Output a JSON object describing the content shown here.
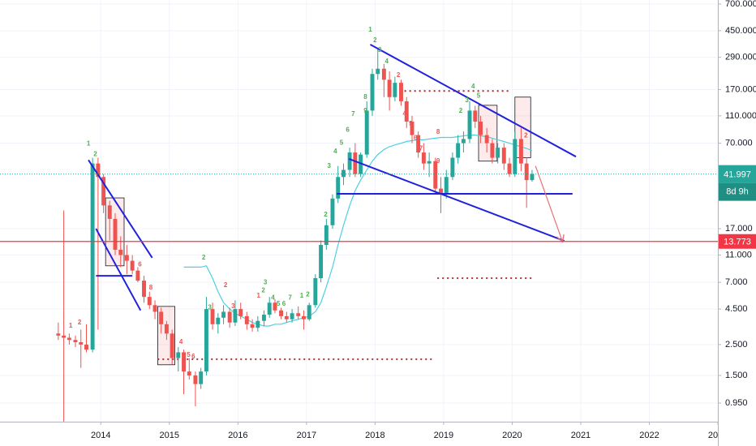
{
  "chart_data": {
    "type": "candlestick",
    "log_scale": true,
    "grid": true,
    "xlim": [
      2012.53,
      2023.0
    ],
    "ylim": [
      0.698,
      748
    ],
    "xticks": [
      2014,
      2015,
      2016,
      2017,
      2018,
      2019,
      2020,
      2021,
      2022,
      {
        "value": 2023,
        "label": "20"
      }
    ],
    "yticks": [
      {
        "value": 700,
        "label": "700.000"
      },
      {
        "value": 450,
        "label": "450.000"
      },
      {
        "value": 290,
        "label": "290.000"
      },
      {
        "value": 170,
        "label": "170.000"
      },
      {
        "value": 110,
        "label": "110.000"
      },
      {
        "value": 70,
        "label": "70.000"
      },
      {
        "value": 17,
        "label": "17.000"
      },
      {
        "value": 11,
        "label": "11.000"
      },
      {
        "value": 7,
        "label": "7.000"
      },
      {
        "value": 4.5,
        "label": "4.500"
      },
      {
        "value": 2.5,
        "label": "2.500"
      },
      {
        "value": 1.5,
        "label": "1.500"
      },
      {
        "value": 0.95,
        "label": "0.950"
      }
    ],
    "candles": {
      "up_color": "#26a69a",
      "down_color": "#ef5350",
      "x": [
        2013.38,
        2013.46,
        2013.54,
        2013.63,
        2013.71,
        2013.79,
        2013.88,
        2013.96,
        2014.04,
        2014.13,
        2014.21,
        2014.29,
        2014.38,
        2014.46,
        2014.54,
        2014.63,
        2014.71,
        2014.79,
        2014.88,
        2014.96,
        2015.04,
        2015.13,
        2015.21,
        2015.29,
        2015.38,
        2015.46,
        2015.54,
        2015.63,
        2015.71,
        2015.79,
        2015.88,
        2015.96,
        2016.04,
        2016.13,
        2016.21,
        2016.29,
        2016.38,
        2016.46,
        2016.54,
        2016.63,
        2016.71,
        2016.79,
        2016.88,
        2016.96,
        2017.04,
        2017.13,
        2017.21,
        2017.29,
        2017.38,
        2017.46,
        2017.54,
        2017.63,
        2017.71,
        2017.79,
        2017.88,
        2017.96,
        2018.04,
        2018.13,
        2018.21,
        2018.29,
        2018.38,
        2018.46,
        2018.54,
        2018.63,
        2018.71,
        2018.79,
        2018.88,
        2018.96,
        2019.04,
        2019.13,
        2019.21,
        2019.29,
        2019.38,
        2019.46,
        2019.54,
        2019.63,
        2019.71,
        2019.79,
        2019.88,
        2019.96,
        2020.04,
        2020.13,
        2020.21,
        2020.29
      ],
      "open": [
        3.0,
        2.9,
        2.8,
        2.7,
        2.6,
        2.5,
        2.3,
        50,
        40,
        25,
        20,
        12,
        11,
        10,
        8.5,
        7.2,
        5.5,
        4.8,
        4.3,
        3.5,
        3.0,
        2.0,
        2.2,
        1.6,
        1.5,
        1.3,
        1.6,
        4.5,
        3.5,
        3.9,
        4.3,
        3.6,
        4.5,
        4.0,
        3.5,
        3.3,
        3.7,
        4.1,
        5.0,
        4.4,
        4.0,
        3.8,
        4.2,
        4.0,
        3.8,
        4.8,
        7.5,
        13,
        18,
        28,
        40,
        45,
        60,
        42,
        58,
        120,
        220,
        240,
        200,
        150,
        190,
        140,
        100,
        80,
        60,
        50,
        52,
        33,
        30,
        40,
        55,
        70,
        75,
        120,
        100,
        80,
        70,
        55,
        65,
        50,
        42,
        75,
        50,
        38
      ],
      "high": [
        3.6,
        23,
        3.0,
        2.9,
        3.2,
        3.5,
        55,
        55,
        42,
        27,
        22,
        15,
        13,
        11,
        9,
        7.8,
        6,
        5.2,
        4.6,
        3.7,
        3.2,
        2.4,
        2.3,
        2.0,
        1.6,
        1.7,
        5.5,
        5.0,
        4.2,
        4.8,
        4.6,
        5.2,
        5.0,
        4.3,
        3.8,
        4.0,
        4.4,
        5.5,
        5.3,
        4.6,
        4.3,
        4.5,
        4.7,
        4.4,
        5,
        8,
        14,
        20,
        30,
        48,
        50,
        65,
        70,
        60,
        140,
        240,
        330,
        260,
        230,
        210,
        200,
        150,
        110,
        85,
        70,
        60,
        55,
        40,
        45,
        60,
        80,
        85,
        140,
        130,
        110,
        90,
        75,
        70,
        70,
        55,
        85,
        90,
        55,
        45
      ],
      "low": [
        2.7,
        0.7,
        2.5,
        2.4,
        1.7,
        2.2,
        2.2,
        3.2,
        22,
        14,
        11,
        9,
        8,
        8,
        7,
        5,
        4.5,
        3.8,
        3.0,
        2.7,
        1.8,
        1.6,
        1.1,
        1.4,
        0.9,
        1.2,
        1.5,
        3.2,
        3.0,
        3.5,
        3.3,
        3.4,
        3.8,
        3.2,
        3.1,
        3.1,
        3.4,
        3.9,
        4.2,
        3.8,
        3.6,
        3.6,
        3.8,
        3.2,
        3.7,
        4.6,
        7,
        12,
        17,
        26,
        35,
        40,
        40,
        40,
        55,
        110,
        200,
        150,
        120,
        140,
        130,
        90,
        70,
        55,
        45,
        40,
        30,
        22,
        28,
        38,
        50,
        60,
        70,
        90,
        70,
        60,
        50,
        50,
        45,
        40,
        40,
        44,
        24,
        37
      ],
      "close": [
        2.9,
        2.8,
        2.7,
        2.6,
        2.5,
        2.3,
        50,
        40,
        25,
        20,
        12,
        11,
        10,
        8.5,
        7.2,
        5.5,
        4.8,
        4.3,
        3.5,
        3.0,
        2.0,
        2.2,
        1.6,
        1.5,
        1.3,
        1.6,
        4.5,
        3.5,
        3.9,
        4.3,
        3.6,
        4.5,
        4.0,
        3.5,
        3.3,
        3.7,
        4.1,
        5.0,
        4.4,
        4.0,
        3.8,
        4.2,
        4.0,
        3.8,
        4.8,
        7.5,
        13,
        18,
        28,
        40,
        45,
        60,
        42,
        58,
        120,
        220,
        240,
        200,
        150,
        190,
        140,
        100,
        80,
        60,
        50,
        52,
        33,
        30,
        40,
        55,
        70,
        75,
        120,
        100,
        80,
        70,
        55,
        65,
        50,
        42,
        75,
        50,
        38,
        41.997
      ]
    },
    "moving_average": {
      "color": "#4dd0e1",
      "values": [
        null,
        null,
        null,
        null,
        null,
        null,
        null,
        null,
        null,
        null,
        null,
        null,
        null,
        null,
        null,
        null,
        null,
        null,
        null,
        null,
        null,
        null,
        9,
        9,
        9,
        9,
        9.2,
        7.5,
        6,
        5,
        4.5,
        4.2,
        4.0,
        3.8,
        3.6,
        3.5,
        3.4,
        3.4,
        3.5,
        3.5,
        3.6,
        3.7,
        3.8,
        3.9,
        4.0,
        4.3,
        5,
        6.5,
        9,
        13,
        18,
        25,
        32,
        38,
        45,
        52,
        58,
        63,
        66,
        68,
        70,
        72,
        73,
        74,
        74,
        75,
        76,
        77,
        77,
        77,
        78,
        79,
        80,
        80,
        79,
        78,
        76,
        74,
        72,
        70,
        68,
        66,
        64,
        62
      ]
    },
    "countdown": "8d 9h",
    "horizontal_line": {
      "value": 13.773,
      "color": "#f23645"
    },
    "trend_lines": [
      {
        "color": "#2222dd",
        "points": [
          [
            2013.82,
            53
          ],
          [
            2014.75,
            10.5
          ]
        ]
      },
      {
        "color": "#2222dd",
        "points": [
          [
            2013.93,
            17
          ],
          [
            2014.58,
            4.4
          ]
        ]
      },
      {
        "color": "#2222dd",
        "points": [
          [
            2013.93,
            7.8
          ],
          [
            2014.46,
            7.8
          ]
        ]
      },
      {
        "color": "#2222dd",
        "points": [
          [
            2017.93,
            358
          ],
          [
            2020.93,
            56
          ]
        ]
      },
      {
        "color": "#2222dd",
        "points": [
          [
            2017.62,
            54
          ],
          [
            2020.76,
            13.9
          ]
        ]
      },
      {
        "color": "#2222dd",
        "points": [
          [
            2017.44,
            30.3
          ],
          [
            2020.88,
            30.3
          ]
        ]
      }
    ],
    "arrows": [
      {
        "color": "#e57373",
        "points": [
          [
            2020.34,
            48
          ],
          [
            2020.73,
            13.9
          ]
        ]
      }
    ],
    "levels": [
      {
        "value": 166,
        "from": 2018.37,
        "to": 2019.96,
        "color": "#b23b3b"
      },
      {
        "value": 7.5,
        "from": 2018.92,
        "to": 2020.3,
        "color": "#b23b3b"
      },
      {
        "value": 1.96,
        "from": 2014.84,
        "to": 2018.86,
        "color": "#b23b3b"
      }
    ],
    "boxes": [
      {
        "x": [
          2014.07,
          2014.34
        ],
        "y": [
          9.2,
          28.3
        ]
      },
      {
        "x": [
          2014.83,
          2015.08
        ],
        "y": [
          1.79,
          4.7
        ]
      },
      {
        "x": [
          2019.51,
          2019.78
        ],
        "y": [
          52,
          131
        ]
      },
      {
        "x": [
          2020.04,
          2020.27
        ],
        "y": [
          55,
          150
        ]
      }
    ],
    "td_labels": [
      {
        "x": 2013.82,
        "y": 69,
        "label": "1",
        "color": "#4caf50"
      },
      {
        "x": 2013.92,
        "y": 58,
        "label": "2",
        "color": "#4caf50"
      },
      {
        "x": 2013.56,
        "y": 3.4,
        "label": "1",
        "color": "#ef5350"
      },
      {
        "x": 2013.69,
        "y": 3.6,
        "label": "2",
        "color": "#ef5350"
      },
      {
        "x": 2014.57,
        "y": 9.4,
        "label": "6",
        "color": "#ef5350"
      },
      {
        "x": 2014.73,
        "y": 6.4,
        "label": "8",
        "color": "#ef5350"
      },
      {
        "x": 2015.17,
        "y": 2.6,
        "label": "4",
        "color": "#ef5350"
      },
      {
        "x": 2015.28,
        "y": 2.1,
        "label": "5",
        "color": "#ef5350"
      },
      {
        "x": 2015.35,
        "y": 2.04,
        "label": "6",
        "color": "#ef5350"
      },
      {
        "x": 2015.5,
        "y": 10.5,
        "label": "2",
        "color": "#4caf50"
      },
      {
        "x": 2015.59,
        "y": 4.6,
        "label": "3",
        "color": "#4caf50"
      },
      {
        "x": 2015.82,
        "y": 6.65,
        "label": "2",
        "color": "#ef5350"
      },
      {
        "x": 2015.93,
        "y": 4.7,
        "label": "3",
        "color": "#ef5350"
      },
      {
        "x": 2016.3,
        "y": 5.6,
        "label": "1",
        "color": "#ef5350"
      },
      {
        "x": 2016.37,
        "y": 6.1,
        "label": "2",
        "color": "#4caf50"
      },
      {
        "x": 2016.4,
        "y": 7.0,
        "label": "3",
        "color": "#4caf50"
      },
      {
        "x": 2016.51,
        "y": 5.4,
        "label": "4",
        "color": "#4caf50"
      },
      {
        "x": 2016.59,
        "y": 4.9,
        "label": "5",
        "color": "#4caf50"
      },
      {
        "x": 2016.67,
        "y": 4.9,
        "label": "6",
        "color": "#4caf50"
      },
      {
        "x": 2016.76,
        "y": 5.4,
        "label": "7",
        "color": "#4caf50"
      },
      {
        "x": 2016.93,
        "y": 5.6,
        "label": "1",
        "color": "#4caf50"
      },
      {
        "x": 2017.02,
        "y": 5.7,
        "label": "2",
        "color": "#4caf50"
      },
      {
        "x": 2017.28,
        "y": 21.4,
        "label": "2",
        "color": "#4caf50"
      },
      {
        "x": 2017.33,
        "y": 48,
        "label": "3",
        "color": "#4caf50"
      },
      {
        "x": 2017.42,
        "y": 61,
        "label": "4",
        "color": "#4caf50"
      },
      {
        "x": 2017.51,
        "y": 70,
        "label": "5",
        "color": "#4caf50"
      },
      {
        "x": 2017.6,
        "y": 87,
        "label": "6",
        "color": "#4caf50"
      },
      {
        "x": 2017.68,
        "y": 113,
        "label": "7",
        "color": "#4caf50"
      },
      {
        "x": 2017.86,
        "y": 150,
        "label": "8",
        "color": "#4caf50"
      },
      {
        "x": 2017.86,
        "y": 119,
        "label": "9",
        "color": "#4caf50"
      },
      {
        "x": 2017.93,
        "y": 456,
        "label": "1",
        "color": "#4caf50"
      },
      {
        "x": 2018.0,
        "y": 383,
        "label": "2",
        "color": "#4caf50"
      },
      {
        "x": 2018.07,
        "y": 326,
        "label": "3",
        "color": "#4caf50"
      },
      {
        "x": 2018.17,
        "y": 270,
        "label": "4",
        "color": "#4caf50"
      },
      {
        "x": 2018.34,
        "y": 215,
        "label": "2",
        "color": "#ef5350"
      },
      {
        "x": 2018.43,
        "y": 114,
        "label": "4",
        "color": "#ef5350"
      },
      {
        "x": 2018.52,
        "y": 96,
        "label": "5",
        "color": "#ef5350"
      },
      {
        "x": 2018.59,
        "y": 76,
        "label": "6",
        "color": "#ef5350"
      },
      {
        "x": 2018.67,
        "y": 64,
        "label": "7",
        "color": "#ef5350"
      },
      {
        "x": 2018.92,
        "y": 84,
        "label": "8",
        "color": "#ef5350"
      },
      {
        "x": 2018.92,
        "y": 52,
        "label": "9",
        "color": "#ef5350"
      },
      {
        "x": 2019.25,
        "y": 119,
        "label": "2",
        "color": "#4caf50"
      },
      {
        "x": 2019.34,
        "y": 142,
        "label": "3",
        "color": "#4caf50"
      },
      {
        "x": 2019.43,
        "y": 178,
        "label": "4",
        "color": "#4caf50"
      },
      {
        "x": 2019.51,
        "y": 153,
        "label": "5",
        "color": "#4caf50"
      },
      {
        "x": 2020.2,
        "y": 79,
        "label": "2",
        "color": "#ef5350"
      }
    ]
  }
}
